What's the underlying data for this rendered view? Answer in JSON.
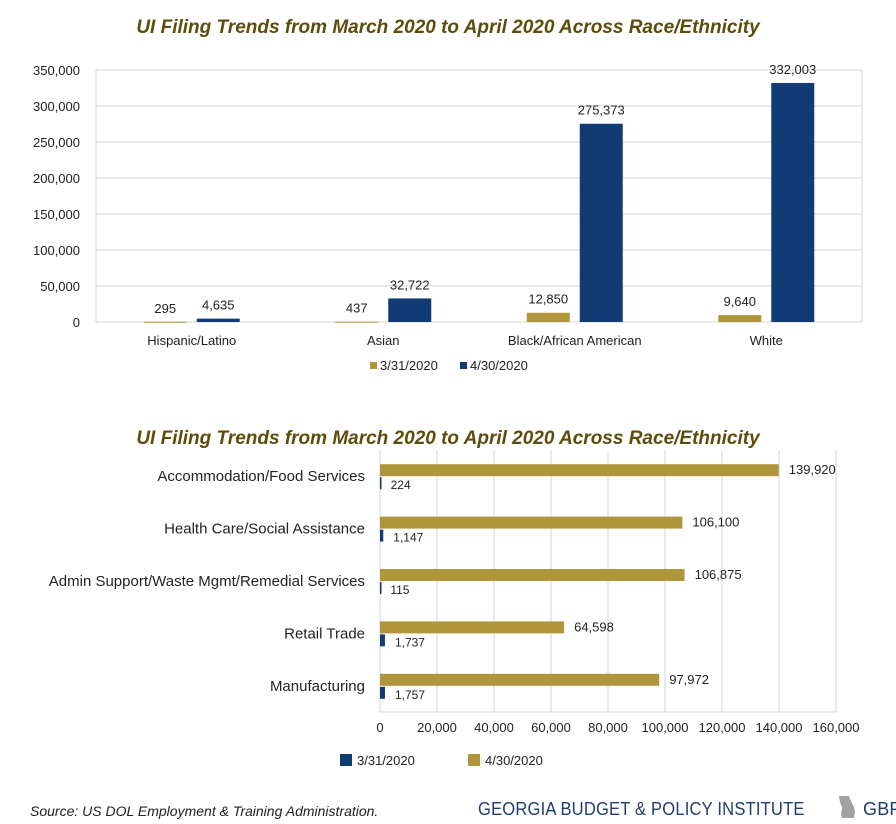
{
  "chart_data": [
    {
      "type": "bar",
      "orientation": "vertical",
      "title": "UI Filing Trends from March 2020 to April 2020 Across Race/Ethnicity",
      "categories": [
        "Hispanic/Latino",
        "Asian",
        "Black/African American",
        "White"
      ],
      "series": [
        {
          "name": "3/31/2020",
          "color": "#b0963a",
          "values": [
            295,
            437,
            12850,
            9640
          ],
          "labels": [
            "295",
            "437",
            "12,850",
            "9,640"
          ]
        },
        {
          "name": "4/30/2020",
          "color": "#123a73",
          "values": [
            4635,
            32722,
            275373,
            332003
          ],
          "labels": [
            "4,635",
            "32,722",
            "275,373",
            "332,003"
          ]
        }
      ],
      "yticks": [
        "0",
        "50,000",
        "100,000",
        "150,000",
        "200,000",
        "250,000",
        "300,000",
        "350,000"
      ],
      "ylim": [
        0,
        350000
      ],
      "grid": true,
      "legend": "bottom"
    },
    {
      "type": "bar",
      "orientation": "horizontal",
      "title": "UI Filing Trends from March 2020 to April 2020 Across Race/Ethnicity",
      "categories": [
        "Accommodation/Food Services",
        "Health Care/Social Assistance",
        "Admin Support/Waste Mgmt/Remedial Services",
        "Retail Trade",
        "Manufacturing"
      ],
      "series": [
        {
          "name": "4/30/2020",
          "color": "#b0963a",
          "values": [
            139920,
            106100,
            106875,
            64598,
            97972
          ],
          "labels": [
            "139,920",
            "106,100",
            "106,875",
            "64,598",
            "97,972"
          ]
        },
        {
          "name": "3/31/2020",
          "color": "#123a73",
          "values": [
            224,
            1147,
            115,
            1737,
            1757
          ],
          "labels": [
            "224",
            "1,147",
            "115",
            "1,737",
            "1,757"
          ]
        }
      ],
      "xticks": [
        "0",
        "20,000",
        "40,000",
        "60,000",
        "80,000",
        "100,000",
        "120,000",
        "140,000",
        "160,000"
      ],
      "xlim": [
        0,
        160000
      ],
      "grid": true,
      "legend": "bottom",
      "legend_items": [
        {
          "name": "3/31/2020",
          "color": "#123a73"
        },
        {
          "name": "4/30/2020",
          "color": "#b0963a"
        }
      ]
    }
  ],
  "footer": {
    "source": "Source: US DOL Employment & Training Administration.",
    "org_name": "GEORGIA BUDGET & POLICY INSTITUTE",
    "site": "GBPI.org"
  },
  "colors": {
    "gold": "#b0963a",
    "navy": "#123a73",
    "title": "#5c4d0b",
    "brand": "#1f3d6e"
  },
  "icons": [
    "georgia-state-icon"
  ]
}
